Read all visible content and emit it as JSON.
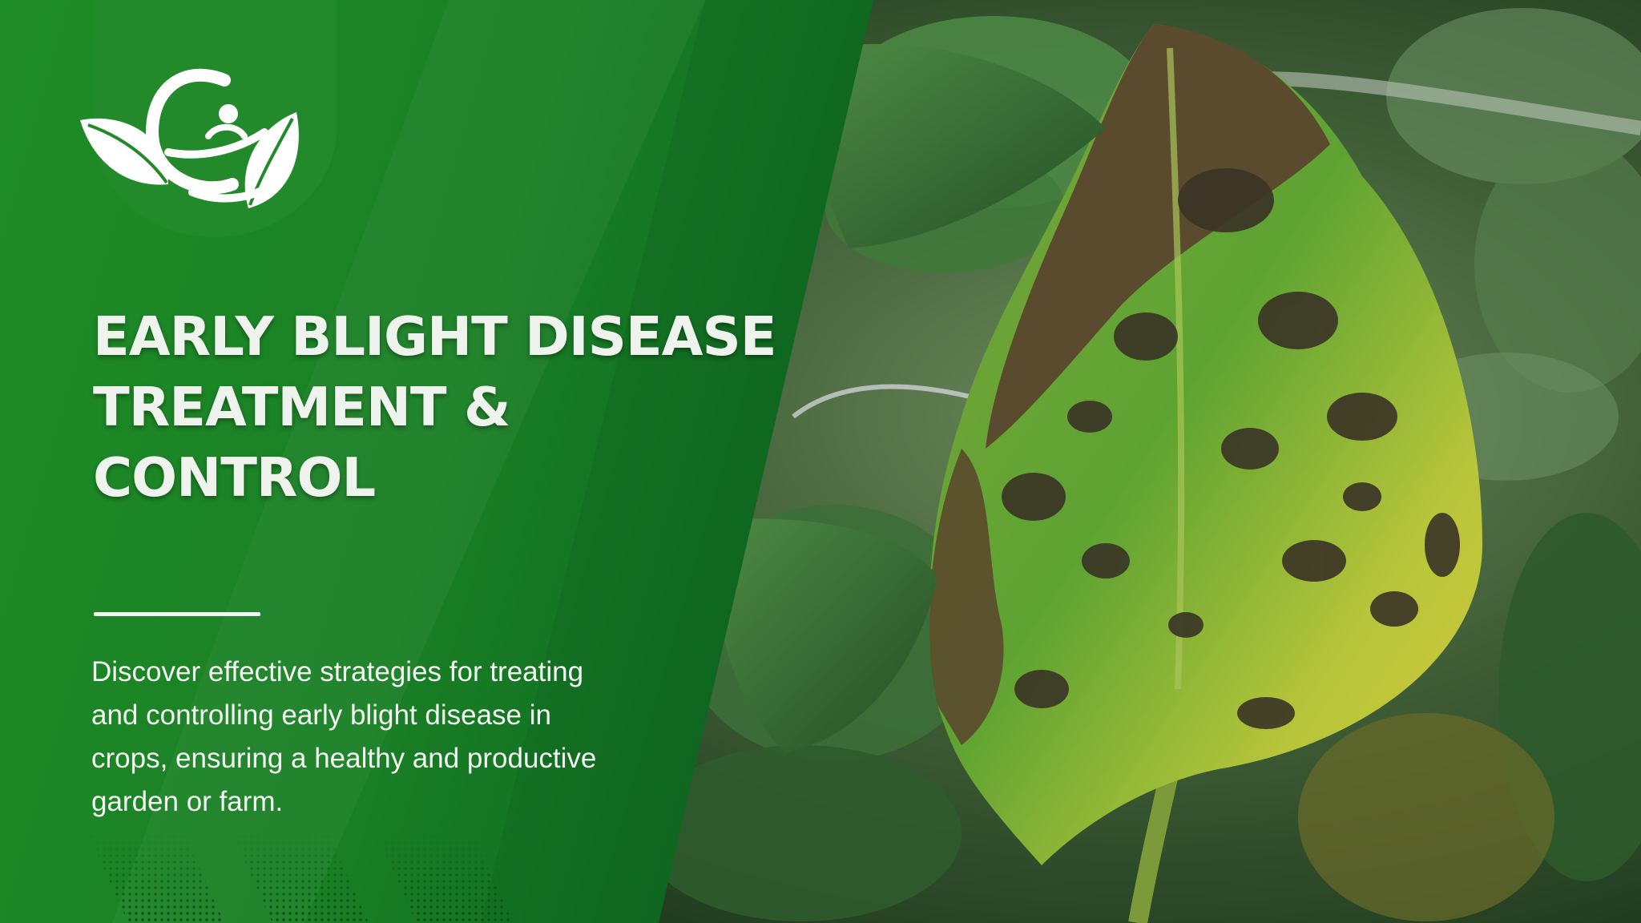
{
  "slide": {
    "title_lines": [
      "EARLY BLIGHT DISEASE",
      "TREATMENT &",
      "CONTROL"
    ],
    "description_lines": [
      "Discover effective strategies for treating",
      "and controlling early blight disease in",
      "crops, ensuring a healthy and productive",
      "garden or farm."
    ]
  },
  "colors": {
    "panel_green": "#1d8a26",
    "panel_green_dark": "#0f6e23",
    "logo_badge": "#238a2b",
    "text_light": "#eef3ee",
    "leaf_yellow": "#c9c83a",
    "lesion_brown": "#3b3325"
  },
  "icons": {
    "logo": "leaf-swirl-logo-icon",
    "pattern": "halftone-dot-pattern"
  }
}
